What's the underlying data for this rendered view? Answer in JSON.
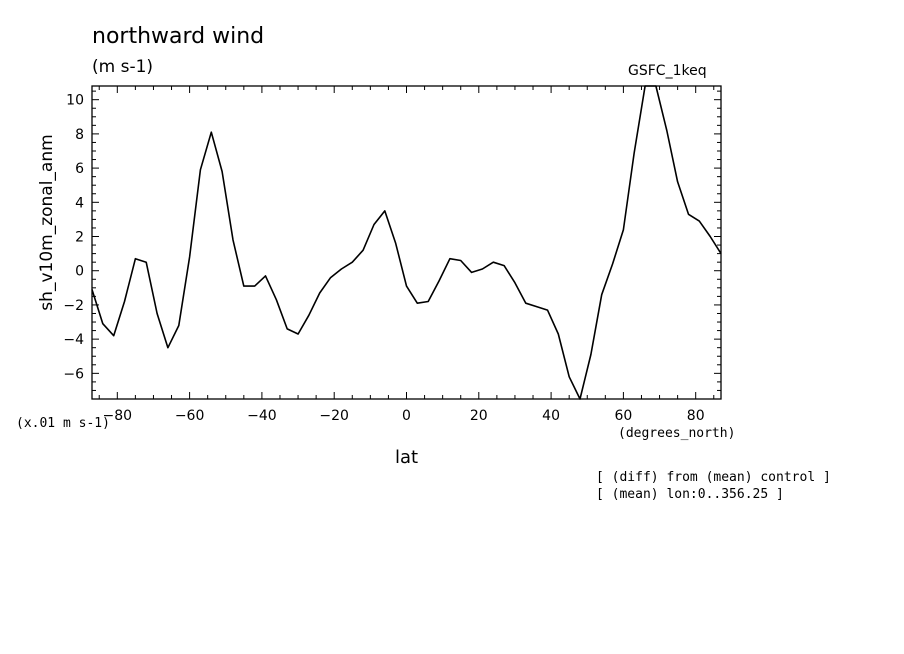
{
  "chart_data": {
    "type": "line",
    "title": "northward wind",
    "subtitle": "(m s-1)",
    "model_label": "GSFC_1keq",
    "ylabel": "sh_v10m_zonal_anm",
    "xlabel": "lat",
    "x_units_label": "(degrees_north)",
    "y_scale_label": "(x.01 m s-1)",
    "annotations": [
      "[ (diff) from (mean) control ]",
      "[ (mean) lon:0..356.25 ]"
    ],
    "xlim": [
      -87,
      87
    ],
    "ylim": [
      -7.5,
      10.8
    ],
    "x_ticks": [
      -80,
      -60,
      -40,
      -20,
      0,
      20,
      40,
      60,
      80
    ],
    "y_ticks": [
      -6,
      -4,
      -2,
      0,
      2,
      4,
      6,
      8,
      10
    ],
    "grid": false,
    "series": [
      {
        "x": [
          -87,
          -84,
          -81,
          -78,
          -75,
          -72,
          -69,
          -66,
          -63,
          -60,
          -57,
          -54,
          -51,
          -48,
          -45,
          -42,
          -39,
          -36,
          -33,
          -30,
          -27,
          -24,
          -21,
          -18,
          -15,
          -12,
          -9,
          -6,
          -3,
          0,
          3,
          6,
          9,
          12,
          15,
          18,
          21,
          24,
          27,
          30,
          33,
          36,
          39,
          42,
          45,
          48,
          51,
          54,
          57,
          60,
          63,
          66,
          69,
          72,
          75,
          78,
          81,
          84,
          87
        ],
        "y": [
          -1.1,
          -3.1,
          -3.8,
          -1.8,
          0.7,
          0.5,
          -2.5,
          -4.5,
          -3.2,
          0.8,
          5.9,
          8.1,
          5.8,
          1.8,
          -0.9,
          -0.9,
          -0.3,
          -1.7,
          -3.4,
          -3.7,
          -2.6,
          -1.3,
          -0.4,
          0.1,
          0.5,
          1.2,
          2.7,
          3.5,
          1.6,
          -0.9,
          -1.9,
          -1.8,
          -0.6,
          0.7,
          0.6,
          -0.1,
          0.1,
          0.5,
          0.3,
          -0.7,
          -1.9,
          -2.1,
          -2.3,
          -3.7,
          -6.2,
          -7.5,
          -4.9,
          -1.4,
          0.4,
          2.4,
          6.9,
          10.8,
          10.8,
          8.2,
          5.2,
          3.3,
          2.9,
          2.0,
          1.0
        ]
      }
    ]
  }
}
